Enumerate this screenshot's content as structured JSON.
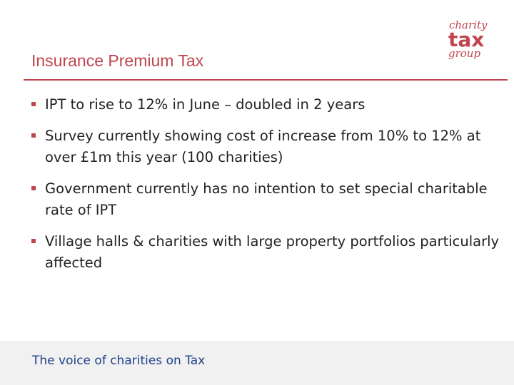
{
  "slide": {
    "title": "Insurance Premium Tax",
    "logo": {
      "line1": "charity",
      "line2": "tax",
      "line3": "group"
    },
    "bullets": [
      {
        "text": "IPT to rise to 12% in June – doubled in 2 years"
      },
      {
        "text": "Survey currently showing cost of increase from 10% to 12% at over £1m this year (100 charities)"
      },
      {
        "text": "Government currently has no intention to set special charitable rate of IPT"
      },
      {
        "text": "Village halls & charities with large property portfolios particularly affected"
      }
    ],
    "footer": "The voice of charities on Tax"
  },
  "colors": {
    "accent": "#c0454f",
    "body_text": "#222222",
    "footer_text": "#1d3f8c",
    "footer_bg": "#f1f1f1"
  }
}
